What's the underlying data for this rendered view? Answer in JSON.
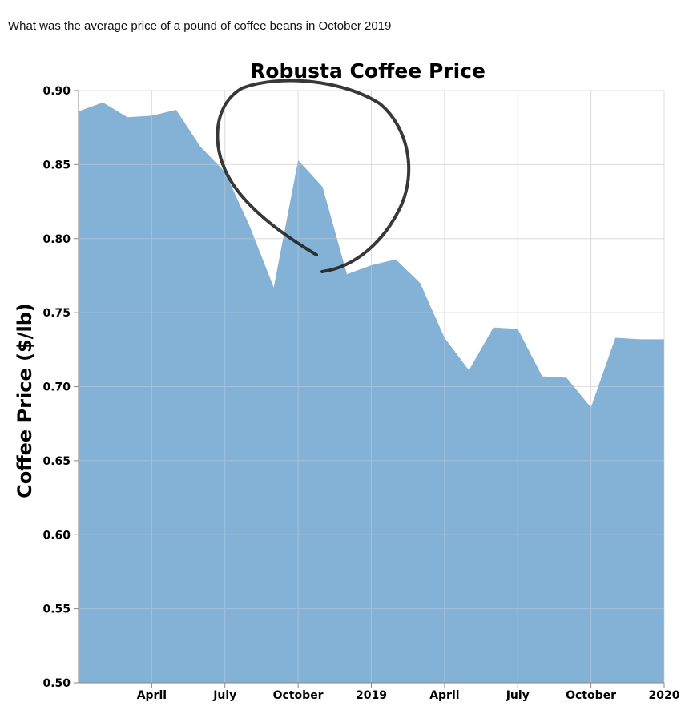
{
  "question": "What was the average price of a pound of coffee beans in October 2019",
  "chart_data": {
    "type": "area",
    "title": "Robusta Coffee Price",
    "xlabel": "",
    "ylabel": "Coffee Price ($/lb)",
    "ylim": [
      0.5,
      0.9
    ],
    "yticks": [
      "0.50",
      "0.55",
      "0.60",
      "0.65",
      "0.70",
      "0.75",
      "0.80",
      "0.85",
      "0.90"
    ],
    "xlim": [
      "2018-01",
      "2020-01"
    ],
    "xticks": [
      {
        "date": "2018-04",
        "label": "April"
      },
      {
        "date": "2018-07",
        "label": "July"
      },
      {
        "date": "2018-10",
        "label": "October"
      },
      {
        "date": "2019-01",
        "label": "2019"
      },
      {
        "date": "2019-04",
        "label": "April"
      },
      {
        "date": "2019-07",
        "label": "July"
      },
      {
        "date": "2019-10",
        "label": "October"
      },
      {
        "date": "2020-01",
        "label": "2020"
      }
    ],
    "grid": true,
    "color": "#84b2d7",
    "series": [
      {
        "x": [
          "2018-01",
          "2018-02",
          "2018-03",
          "2018-04",
          "2018-05",
          "2018-06",
          "2018-07",
          "2018-08",
          "2018-09",
          "2018-10",
          "2018-11",
          "2018-12",
          "2019-01",
          "2019-02",
          "2019-03",
          "2019-04",
          "2019-05",
          "2019-06",
          "2019-07",
          "2019-08",
          "2019-09",
          "2019-10",
          "2019-11",
          "2019-12",
          "2020-01"
        ],
        "values": [
          0.886,
          0.892,
          0.882,
          0.883,
          0.887,
          0.862,
          0.845,
          0.809,
          0.767,
          0.853,
          0.835,
          0.776,
          0.782,
          0.786,
          0.77,
          0.733,
          0.711,
          0.74,
          0.739,
          0.707,
          0.706,
          0.686,
          0.733,
          0.732,
          0.732
        ]
      }
    ]
  }
}
